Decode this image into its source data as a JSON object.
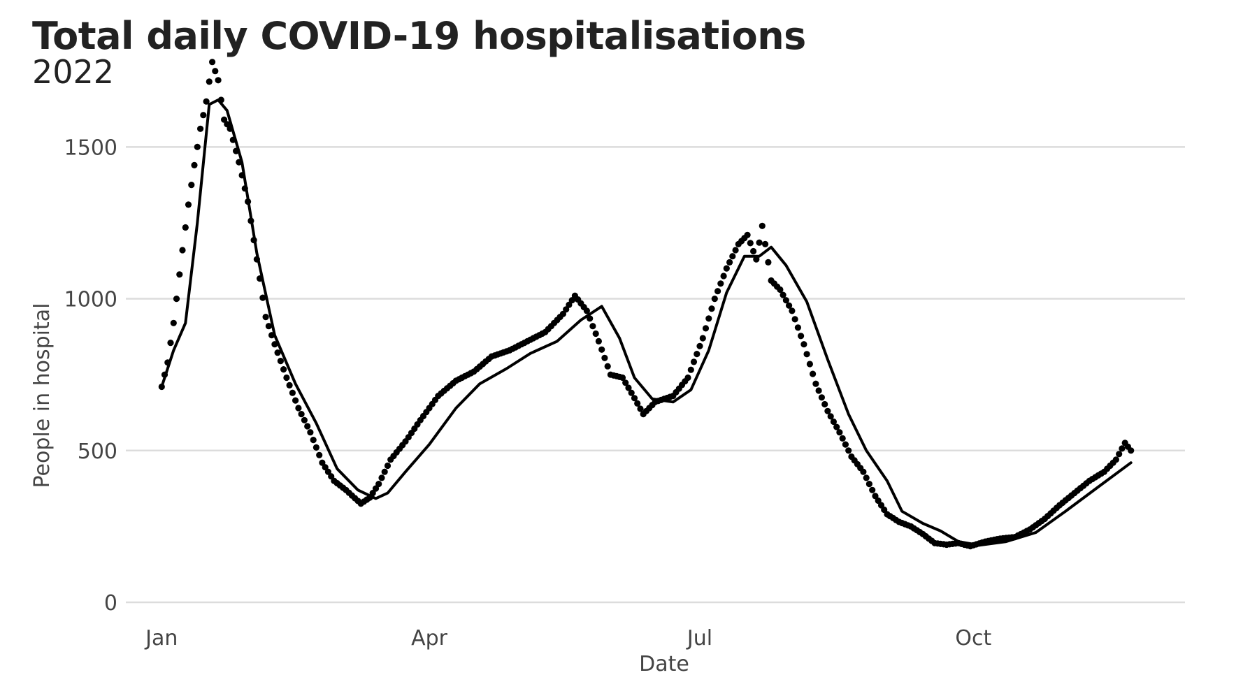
{
  "chart_data": {
    "type": "scatter",
    "title": "Total daily COVID-19 hospitalisations",
    "subtitle": "2022",
    "xlabel": "Date",
    "ylabel": "People in hospital",
    "x_type": "date",
    "xlim": [
      "2021-12-27",
      "2022-12-10"
    ],
    "ylim": [
      0,
      1800
    ],
    "yticks": [
      0,
      500,
      1000,
      1500
    ],
    "xticks": [
      {
        "date": "2022-01-01",
        "label": "Jan"
      },
      {
        "date": "2022-04-01",
        "label": "Apr"
      },
      {
        "date": "2022-07-01",
        "label": "Jul"
      },
      {
        "date": "2022-10-01",
        "label": "Oct"
      }
    ],
    "grid": true,
    "legend": "none",
    "point_color": "#000000",
    "line_color": "#000000",
    "daily_anchors": [
      [
        "2022-01-01",
        710
      ],
      [
        "2022-01-03",
        790
      ],
      [
        "2022-01-05",
        920
      ],
      [
        "2022-01-08",
        1160
      ],
      [
        "2022-01-10",
        1310
      ],
      [
        "2022-01-12",
        1440
      ],
      [
        "2022-01-14",
        1560
      ],
      [
        "2022-01-16",
        1650
      ],
      [
        "2022-01-18",
        1780
      ],
      [
        "2022-01-20",
        1720
      ],
      [
        "2022-01-22",
        1590
      ],
      [
        "2022-01-24",
        1560
      ],
      [
        "2022-01-27",
        1450
      ],
      [
        "2022-01-30",
        1320
      ],
      [
        "2022-02-02",
        1130
      ],
      [
        "2022-02-05",
        940
      ],
      [
        "2022-02-08",
        850
      ],
      [
        "2022-02-12",
        740
      ],
      [
        "2022-02-16",
        640
      ],
      [
        "2022-02-20",
        560
      ],
      [
        "2022-02-24",
        460
      ],
      [
        "2022-02-28",
        400
      ],
      [
        "2022-03-04",
        370
      ],
      [
        "2022-03-09",
        325
      ],
      [
        "2022-03-12",
        345
      ],
      [
        "2022-03-15",
        390
      ],
      [
        "2022-03-19",
        470
      ],
      [
        "2022-03-24",
        530
      ],
      [
        "2022-03-29",
        600
      ],
      [
        "2022-04-04",
        680
      ],
      [
        "2022-04-10",
        730
      ],
      [
        "2022-04-16",
        760
      ],
      [
        "2022-04-22",
        810
      ],
      [
        "2022-04-28",
        830
      ],
      [
        "2022-05-04",
        860
      ],
      [
        "2022-05-10",
        890
      ],
      [
        "2022-05-16",
        950
      ],
      [
        "2022-05-20",
        1010
      ],
      [
        "2022-05-24",
        960
      ],
      [
        "2022-05-28",
        860
      ],
      [
        "2022-06-01",
        750
      ],
      [
        "2022-06-05",
        740
      ],
      [
        "2022-06-08",
        690
      ],
      [
        "2022-06-12",
        620
      ],
      [
        "2022-06-16",
        660
      ],
      [
        "2022-06-22",
        680
      ],
      [
        "2022-06-27",
        740
      ],
      [
        "2022-07-02",
        870
      ],
      [
        "2022-07-06",
        1000
      ],
      [
        "2022-07-10",
        1100
      ],
      [
        "2022-07-14",
        1180
      ],
      [
        "2022-07-17",
        1210
      ],
      [
        "2022-07-20",
        1130
      ],
      [
        "2022-07-22",
        1240
      ],
      [
        "2022-07-25",
        1060
      ],
      [
        "2022-07-28",
        1030
      ],
      [
        "2022-08-01",
        960
      ],
      [
        "2022-08-05",
        850
      ],
      [
        "2022-08-09",
        720
      ],
      [
        "2022-08-13",
        630
      ],
      [
        "2022-08-17",
        560
      ],
      [
        "2022-08-21",
        480
      ],
      [
        "2022-08-25",
        430
      ],
      [
        "2022-08-29",
        350
      ],
      [
        "2022-09-02",
        290
      ],
      [
        "2022-09-06",
        265
      ],
      [
        "2022-09-10",
        250
      ],
      [
        "2022-09-14",
        225
      ],
      [
        "2022-09-18",
        195
      ],
      [
        "2022-09-22",
        190
      ],
      [
        "2022-09-26",
        195
      ],
      [
        "2022-09-30",
        185
      ],
      [
        "2022-10-05",
        200
      ],
      [
        "2022-10-10",
        210
      ],
      [
        "2022-10-15",
        215
      ],
      [
        "2022-10-20",
        240
      ],
      [
        "2022-10-25",
        275
      ],
      [
        "2022-10-30",
        320
      ],
      [
        "2022-11-04",
        360
      ],
      [
        "2022-11-09",
        400
      ],
      [
        "2022-11-14",
        430
      ],
      [
        "2022-11-18",
        470
      ],
      [
        "2022-11-21",
        525
      ],
      [
        "2022-11-23",
        500
      ]
    ],
    "series": [
      {
        "type": "line",
        "values": [
          [
            "2022-01-01",
            710
          ],
          [
            "2022-01-05",
            830
          ],
          [
            "2022-01-09",
            920
          ],
          [
            "2022-01-13",
            1250
          ],
          [
            "2022-01-17",
            1640
          ],
          [
            "2022-01-20",
            1655
          ],
          [
            "2022-01-23",
            1620
          ],
          [
            "2022-01-28",
            1450
          ],
          [
            "2022-02-02",
            1150
          ],
          [
            "2022-02-08",
            880
          ],
          [
            "2022-02-15",
            720
          ],
          [
            "2022-02-22",
            590
          ],
          [
            "2022-03-01",
            440
          ],
          [
            "2022-03-08",
            370
          ],
          [
            "2022-03-14",
            342
          ],
          [
            "2022-03-18",
            360
          ],
          [
            "2022-03-24",
            430
          ],
          [
            "2022-04-01",
            520
          ],
          [
            "2022-04-10",
            640
          ],
          [
            "2022-04-18",
            720
          ],
          [
            "2022-04-27",
            770
          ],
          [
            "2022-05-05",
            820
          ],
          [
            "2022-05-14",
            860
          ],
          [
            "2022-05-22",
            930
          ],
          [
            "2022-05-29",
            975
          ],
          [
            "2022-06-04",
            870
          ],
          [
            "2022-06-09",
            740
          ],
          [
            "2022-06-15",
            670
          ],
          [
            "2022-06-22",
            660
          ],
          [
            "2022-06-28",
            700
          ],
          [
            "2022-07-04",
            830
          ],
          [
            "2022-07-10",
            1020
          ],
          [
            "2022-07-16",
            1140
          ],
          [
            "2022-07-21",
            1140
          ],
          [
            "2022-07-25",
            1170
          ],
          [
            "2022-07-30",
            1110
          ],
          [
            "2022-08-06",
            990
          ],
          [
            "2022-08-13",
            800
          ],
          [
            "2022-08-20",
            620
          ],
          [
            "2022-08-26",
            500
          ],
          [
            "2022-09-02",
            400
          ],
          [
            "2022-09-07",
            300
          ],
          [
            "2022-09-14",
            260
          ],
          [
            "2022-09-20",
            235
          ],
          [
            "2022-09-26",
            200
          ],
          [
            "2022-10-03",
            188
          ],
          [
            "2022-10-12",
            200
          ],
          [
            "2022-10-22",
            230
          ],
          [
            "2022-11-01",
            300
          ],
          [
            "2022-11-12",
            380
          ],
          [
            "2022-11-23",
            460
          ]
        ]
      }
    ]
  }
}
